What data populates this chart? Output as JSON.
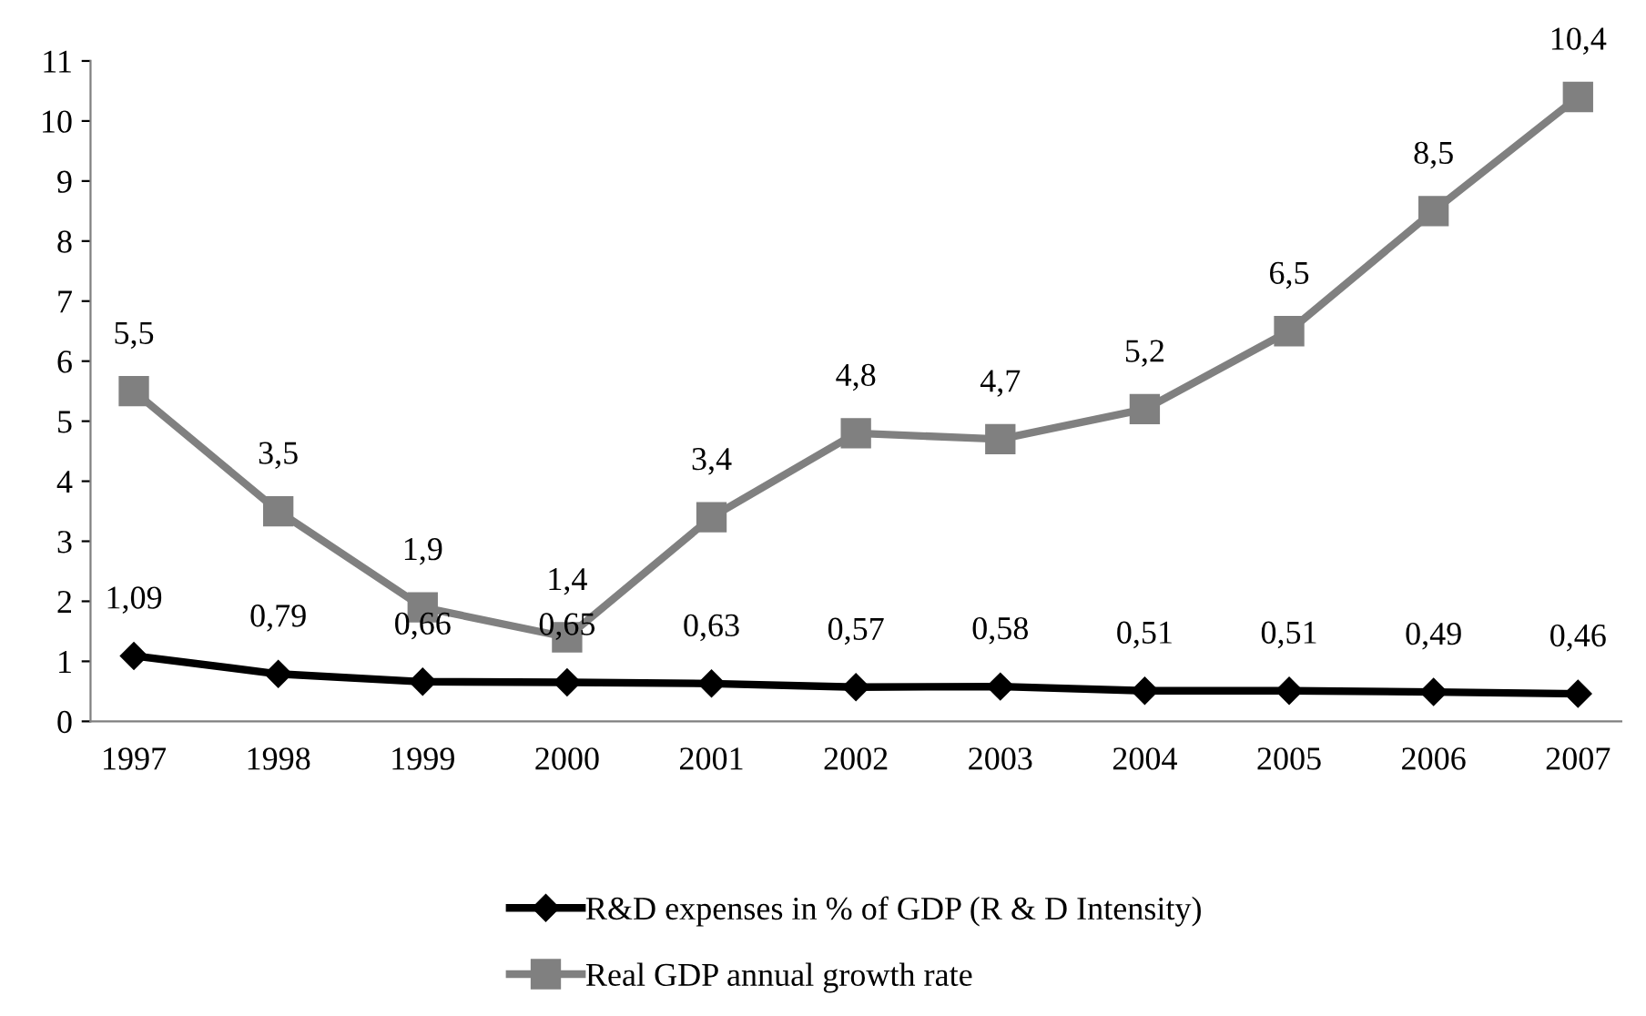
{
  "chart_data": {
    "type": "line",
    "categories": [
      "1997",
      "1998",
      "1999",
      "2000",
      "2001",
      "2002",
      "2003",
      "2004",
      "2005",
      "2006",
      "2007"
    ],
    "series": [
      {
        "name": "R&D expenses in % of GDP (R & D Intensity)",
        "color": "#000000",
        "marker": "diamond",
        "values": [
          1.09,
          0.79,
          0.66,
          0.65,
          0.63,
          0.57,
          0.58,
          0.51,
          0.51,
          0.49,
          0.46
        ],
        "value_labels": [
          "1,09",
          "0,79",
          "0,66",
          "0,65",
          "0,63",
          "0,57",
          "0,58",
          "0,51",
          "0,51",
          "0,49",
          "0,46"
        ]
      },
      {
        "name": "Real GDP annual growth rate",
        "color": "#808080",
        "marker": "square",
        "values": [
          5.5,
          3.5,
          1.9,
          1.4,
          3.4,
          4.8,
          4.7,
          5.2,
          6.5,
          8.5,
          10.4
        ],
        "value_labels": [
          "5,5",
          "3,5",
          "1,9",
          "1,4",
          "3,4",
          "4,8",
          "4,7",
          "5,2",
          "6,5",
          "8,5",
          "10,4"
        ]
      }
    ],
    "ylim": [
      0,
      11
    ],
    "yticks": [
      0,
      1,
      2,
      3,
      4,
      5,
      6,
      7,
      8,
      9,
      10,
      11
    ],
    "grid": false,
    "legend": "bottom",
    "line_style": "solid"
  }
}
